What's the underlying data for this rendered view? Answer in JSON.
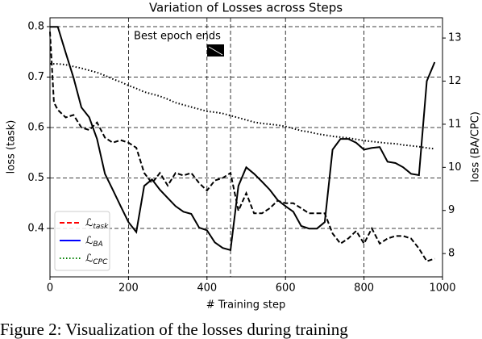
{
  "chart_data": {
    "type": "line",
    "title": "Variation of Losses across Steps",
    "x_label": "# Training step",
    "y_label": "loss (task)",
    "y2_label": "loss (BA/CPC)",
    "annotation": {
      "text": "Best epoch ends",
      "x": 460
    },
    "caption": "Figure 2: Visualization of the losses during training",
    "xlim": [
      0,
      1000
    ],
    "xticks": [
      0,
      200,
      400,
      600,
      800,
      1000
    ],
    "ylim": [
      0.304,
      0.8176
    ],
    "yticks": [
      0.4,
      0.5,
      0.6,
      0.7,
      0.8
    ],
    "y2lim": [
      7.46,
      13.47
    ],
    "y2ticks": [
      8,
      9,
      10,
      11,
      12,
      13
    ],
    "grid": true,
    "legend": "lower left",
    "series": [
      {
        "name": "ℒ",
        "sub": "task",
        "color": "#000000",
        "legend_color": "#ff0000",
        "style": "dashed",
        "axis": "y",
        "x": [
          0,
          10,
          20,
          40,
          60,
          80,
          100,
          120,
          140,
          160,
          180,
          200,
          220,
          240,
          260,
          280,
          300,
          320,
          340,
          360,
          380,
          400,
          420,
          440,
          460,
          480,
          500,
          520,
          540,
          560,
          580,
          600,
          620,
          640,
          660,
          680,
          700,
          720,
          740,
          760,
          780,
          800,
          820,
          840,
          860,
          880,
          900,
          920,
          940,
          960,
          980
        ],
        "values": [
          0.79,
          0.65,
          0.635,
          0.62,
          0.625,
          0.6,
          0.595,
          0.61,
          0.58,
          0.57,
          0.575,
          0.57,
          0.56,
          0.51,
          0.49,
          0.51,
          0.485,
          0.51,
          0.505,
          0.51,
          0.49,
          0.475,
          0.495,
          0.5,
          0.51,
          0.435,
          0.47,
          0.43,
          0.43,
          0.44,
          0.455,
          0.45,
          0.45,
          0.44,
          0.43,
          0.43,
          0.43,
          0.39,
          0.37,
          0.38,
          0.395,
          0.37,
          0.4,
          0.37,
          0.38,
          0.385,
          0.385,
          0.38,
          0.36,
          0.335,
          0.34
        ]
      },
      {
        "name": "ℒ",
        "sub": "BA",
        "color": "#000000",
        "legend_color": "#0000ff",
        "style": "solid",
        "axis": "y2",
        "x": [
          0,
          20,
          40,
          60,
          80,
          100,
          120,
          140,
          160,
          180,
          200,
          220,
          240,
          260,
          280,
          300,
          320,
          340,
          360,
          380,
          400,
          420,
          440,
          460,
          480,
          500,
          520,
          540,
          560,
          580,
          600,
          620,
          640,
          660,
          680,
          700,
          720,
          740,
          760,
          780,
          800,
          820,
          840,
          860,
          880,
          900,
          920,
          940,
          960,
          980
        ],
        "values": [
          13.26,
          13.26,
          12.66,
          12.08,
          11.39,
          11.16,
          10.66,
          9.85,
          9.48,
          9.1,
          8.73,
          8.5,
          9.57,
          9.72,
          9.48,
          9.29,
          9.1,
          8.97,
          8.92,
          8.6,
          8.54,
          8.26,
          8.13,
          8.08,
          9.57,
          10.0,
          9.85,
          9.67,
          9.48,
          9.24,
          9.1,
          8.97,
          8.64,
          8.58,
          8.58,
          8.73,
          10.41,
          10.66,
          10.66,
          10.57,
          10.41,
          10.45,
          10.47,
          10.13,
          10.1,
          10.0,
          9.85,
          9.82,
          12.0,
          12.44
        ]
      },
      {
        "name": "ℒ",
        "sub": "CPC",
        "color": "#000000",
        "legend_color": "#008000",
        "style": "dotted",
        "axis": "y2",
        "x": [
          0,
          20,
          40,
          60,
          80,
          100,
          120,
          140,
          160,
          180,
          200,
          220,
          240,
          260,
          280,
          300,
          320,
          340,
          360,
          380,
          400,
          420,
          440,
          460,
          480,
          500,
          520,
          540,
          560,
          580,
          600,
          620,
          640,
          660,
          680,
          700,
          720,
          740,
          760,
          780,
          800,
          820,
          840,
          860,
          880,
          900,
          920,
          940,
          960,
          980
        ],
        "values": [
          12.4,
          12.4,
          12.38,
          12.34,
          12.3,
          12.25,
          12.2,
          12.13,
          12.05,
          11.98,
          11.9,
          11.83,
          11.75,
          11.7,
          11.65,
          11.58,
          11.5,
          11.45,
          11.4,
          11.35,
          11.3,
          11.28,
          11.25,
          11.2,
          11.15,
          11.1,
          11.05,
          11.02,
          11.0,
          10.98,
          10.95,
          10.9,
          10.85,
          10.82,
          10.78,
          10.75,
          10.72,
          10.7,
          10.68,
          10.65,
          10.62,
          10.6,
          10.58,
          10.56,
          10.55,
          10.52,
          10.5,
          10.48,
          10.45,
          10.43
        ]
      }
    ]
  }
}
